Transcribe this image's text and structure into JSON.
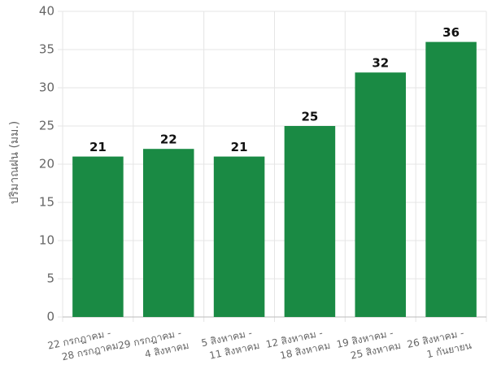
{
  "chart_data": {
    "type": "bar",
    "y_label": "ปริมาณฝน (มม.)",
    "categories": [
      [
        "22 กรกฎาคม -",
        "28 กรกฎาคม"
      ],
      [
        "29 กรกฎาคม -",
        "4 สิงหาคม"
      ],
      [
        "5 สิงหาคม -",
        "11 สิงหาคม"
      ],
      [
        "12 สิงหาคม -",
        "18 สิงหาคม"
      ],
      [
        "19 สิงหาคม -",
        "25 สิงหาคม"
      ],
      [
        "26 สิงหาคม -",
        "1 กันยายน"
      ]
    ],
    "values": [
      21,
      22,
      21,
      25,
      32,
      36
    ],
    "color": "#1a8a44",
    "ylim": [
      0,
      40
    ],
    "yticks": [
      0,
      5,
      10,
      15,
      20,
      25,
      30,
      35,
      40
    ],
    "grid": true
  }
}
